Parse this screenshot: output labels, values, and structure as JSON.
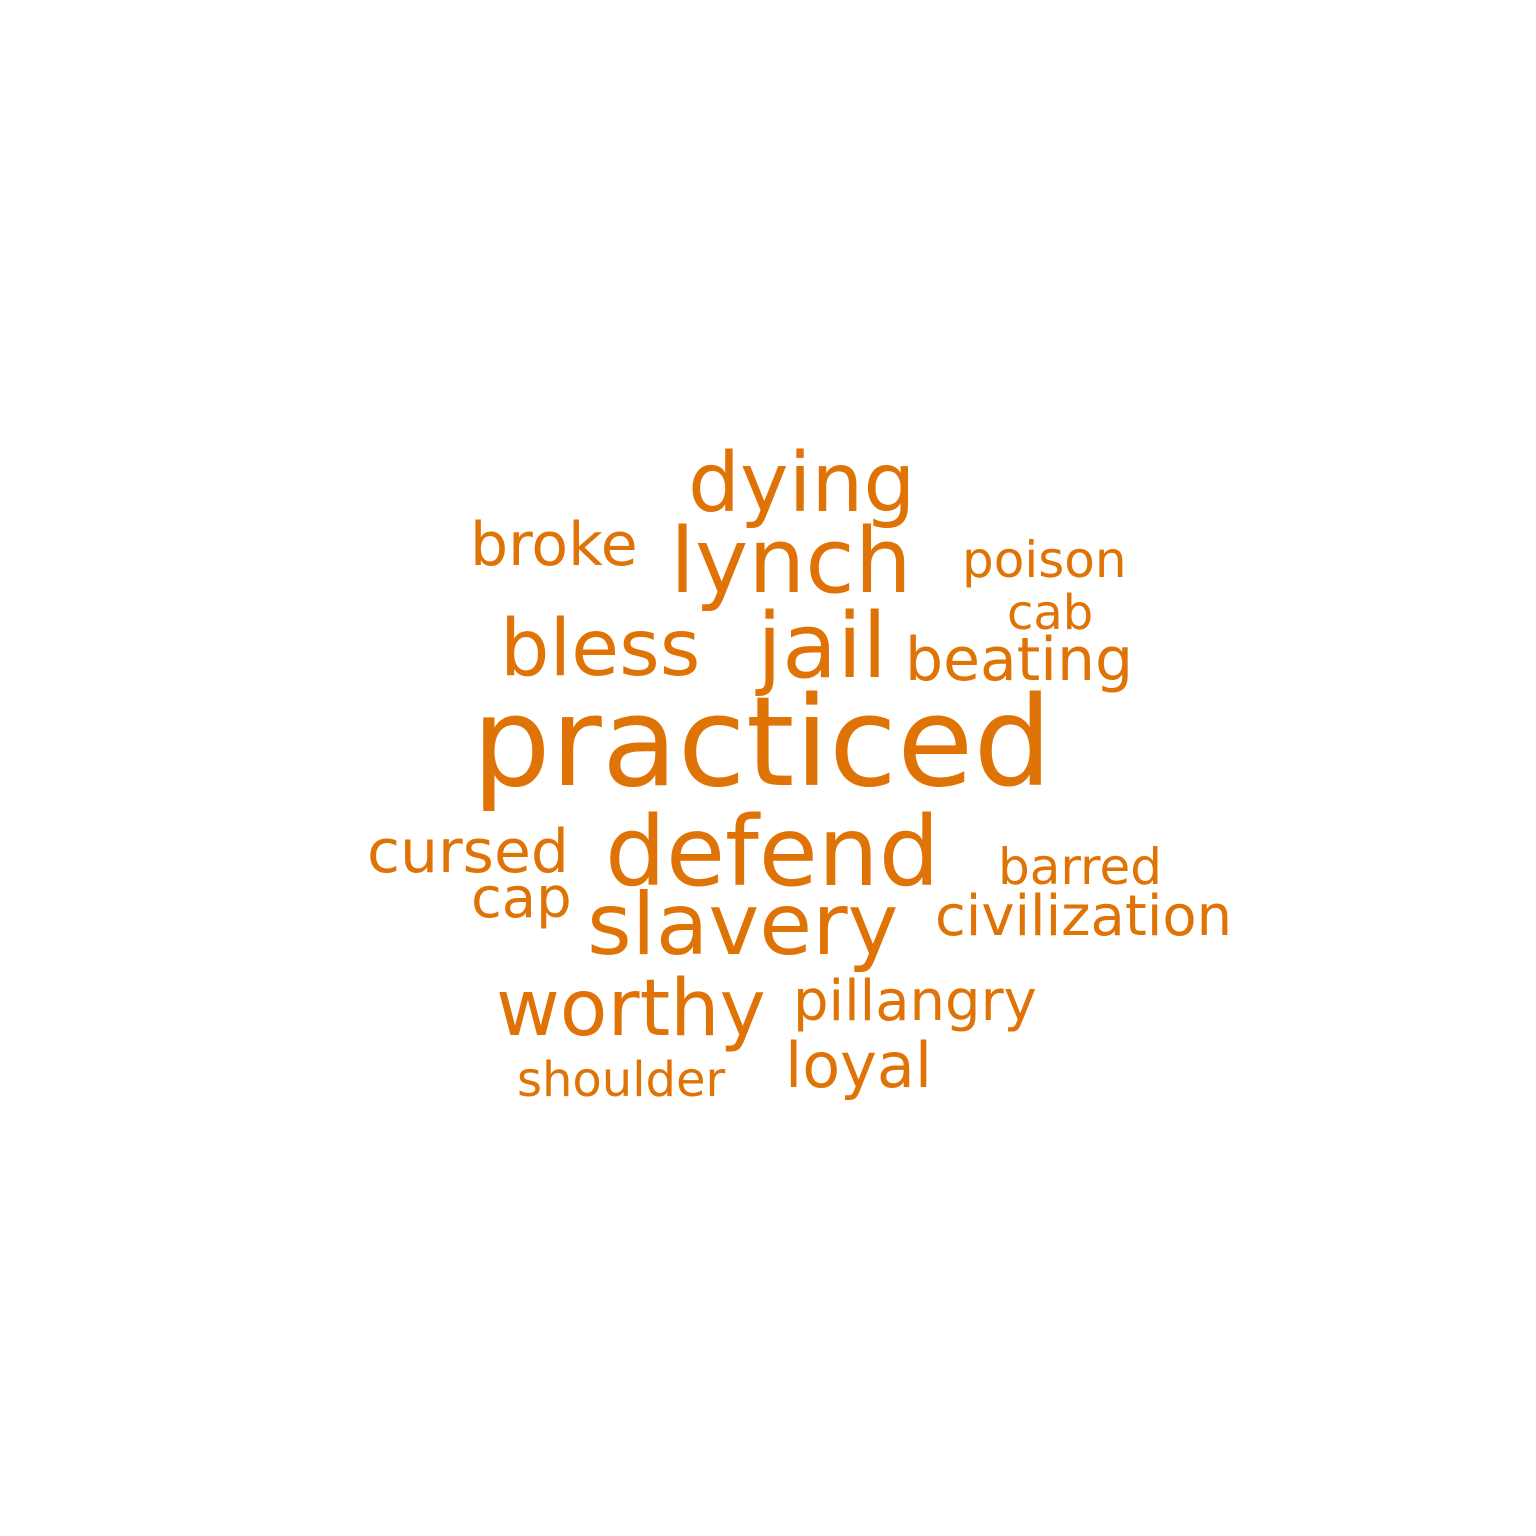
{
  "color": "#e07306",
  "background": "#ffffff",
  "words": {
    "practiced": "practiced",
    "defend": "defend",
    "slavery": "slavery",
    "lynch": "lynch",
    "jail": "jail",
    "dying": "dying",
    "bless": "bless",
    "worthy": "worthy",
    "beating": "beating",
    "loyal": "loyal",
    "broke": "broke",
    "cursed": "cursed",
    "civilization": "civilization",
    "pillangry": "pillangry",
    "cap": "cap",
    "poison": "poison",
    "barred": "barred",
    "shoulder": "shoulder",
    "cab": "cab"
  }
}
